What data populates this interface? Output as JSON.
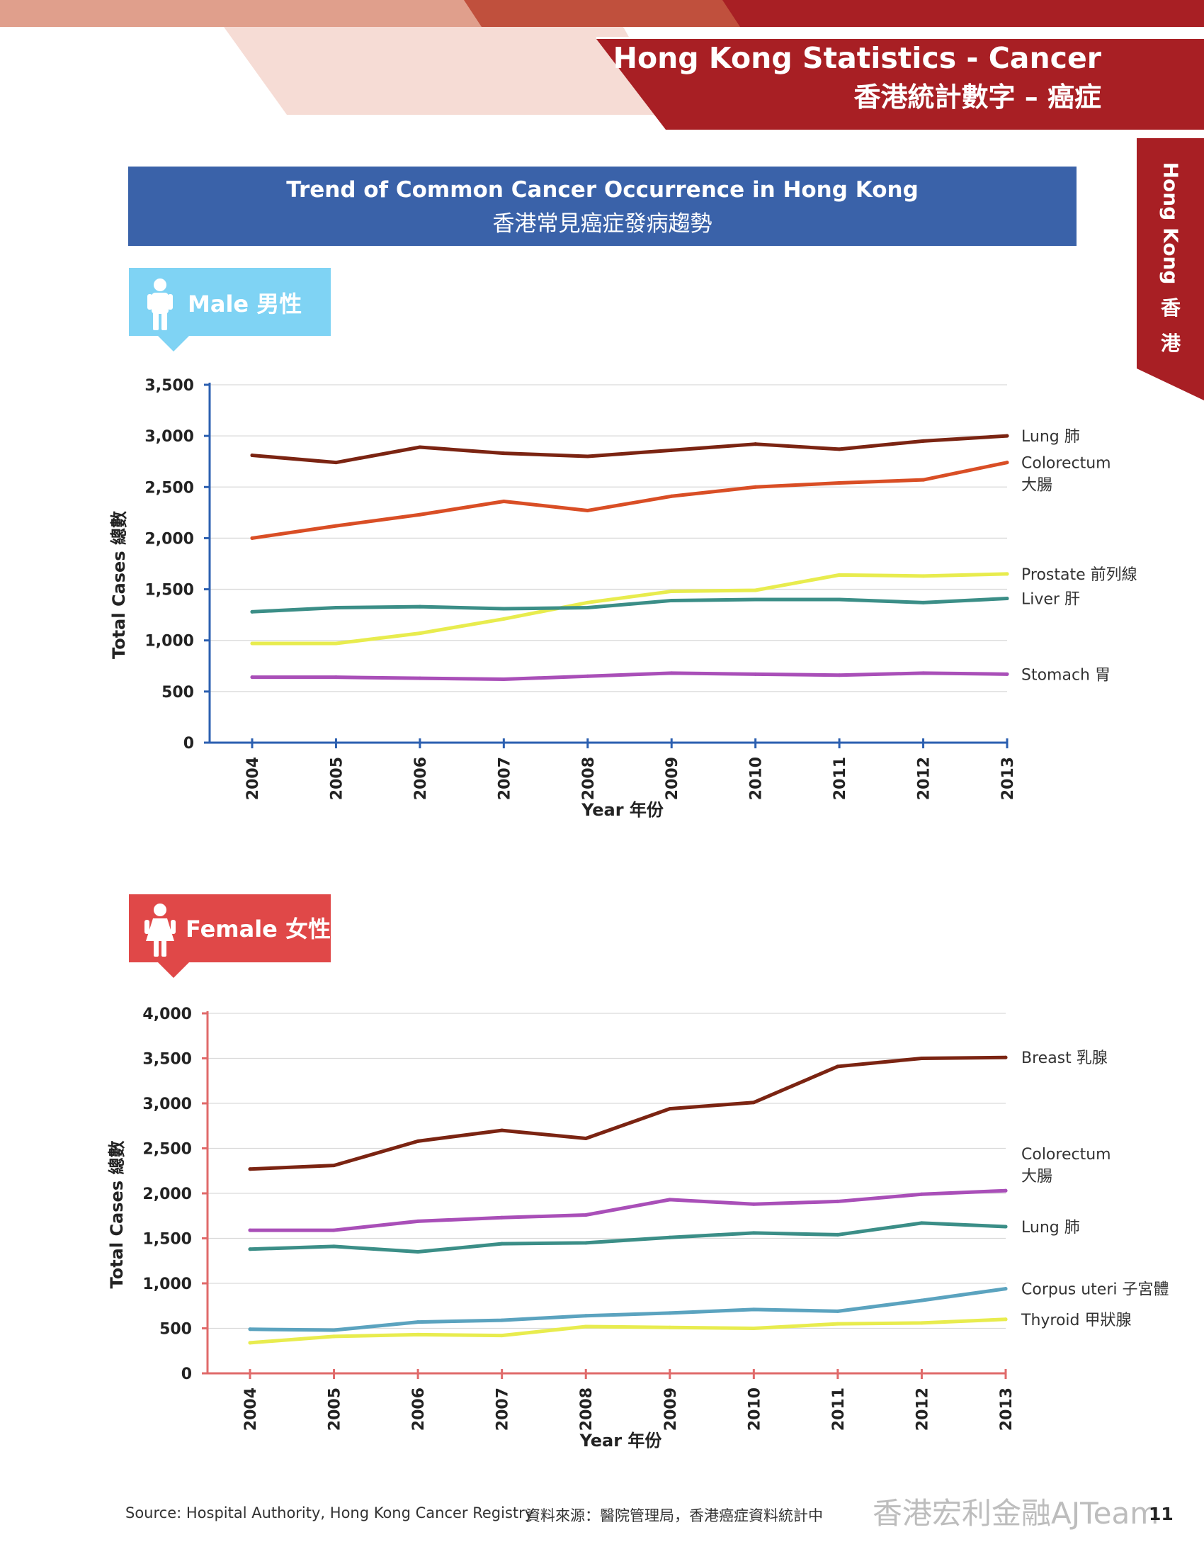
{
  "header": {
    "title_en": "Hong Kong Statistics - Cancer",
    "title_zh": "香港統計數字 – 癌症"
  },
  "side_tab": {
    "line1": "Hong Kong",
    "line2": "香",
    "line3": "港"
  },
  "banner": {
    "title_en": "Trend of Common Cancer Occurrence in Hong Kong",
    "title_zh": "香港常見癌症發病趨勢"
  },
  "male_tag": {
    "label": "Male 男性",
    "color": "#7fd3f4",
    "icon": "male-person-icon"
  },
  "female_tag": {
    "label": "Female 女性",
    "color": "#e04848",
    "icon": "female-person-icon"
  },
  "footer": {
    "source_en": "Source: Hospital Authority, Hong Kong Cancer Registry",
    "source_zh": "資料來源：醫院管理局，香港癌症資料統計中",
    "watermark": "香港宏利金融AJTeam",
    "page_number": "11"
  },
  "chart_data": [
    {
      "type": "line",
      "xlabel": "Year 年份",
      "ylabel": "Total Cases 總數",
      "ylim": [
        0,
        3500
      ],
      "yticks": [
        0,
        500,
        1000,
        1500,
        2000,
        2500,
        3000,
        3500
      ],
      "ytick_labels": [
        "0",
        "500",
        "1,000",
        "1,500",
        "2,000",
        "2,500",
        "3,000",
        "3,500"
      ],
      "axis_color": "#2b5fb0",
      "x": [
        "2004",
        "2005",
        "2006",
        "2007",
        "2008",
        "2009",
        "2010",
        "2011",
        "2012",
        "2013"
      ],
      "series": [
        {
          "name": "Lung 肺",
          "color": "#7b2412",
          "values": [
            2810,
            2740,
            2890,
            2830,
            2800,
            2860,
            2920,
            2870,
            2950,
            3000
          ]
        },
        {
          "name": "Colorectum 大腸",
          "color": "#d94e25",
          "values": [
            2000,
            2120,
            2230,
            2360,
            2270,
            2410,
            2500,
            2540,
            2570,
            2740
          ]
        },
        {
          "name": "Prostate 前列線",
          "color": "#e8ec4e",
          "values": [
            970,
            970,
            1070,
            1210,
            1370,
            1480,
            1490,
            1640,
            1630,
            1650
          ]
        },
        {
          "name": "Liver 肝",
          "color": "#3b8e87",
          "values": [
            1280,
            1320,
            1330,
            1310,
            1320,
            1390,
            1400,
            1400,
            1370,
            1410
          ]
        },
        {
          "name": "Stomach 胃",
          "color": "#a94fb8",
          "values": [
            640,
            640,
            630,
            620,
            650,
            680,
            670,
            660,
            680,
            670
          ]
        }
      ]
    },
    {
      "type": "line",
      "xlabel": "Year 年份",
      "ylabel": "Total Cases 總數",
      "ylim": [
        0,
        4000
      ],
      "yticks": [
        0,
        500,
        1000,
        1500,
        2000,
        2500,
        3000,
        3500,
        4000
      ],
      "ytick_labels": [
        "0",
        "500",
        "1,000",
        "1,500",
        "2,000",
        "2,500",
        "3,000",
        "3,500",
        "4,000"
      ],
      "axis_color": "#e06a6a",
      "x": [
        "2004",
        "2005",
        "2006",
        "2007",
        "2008",
        "2009",
        "2010",
        "2011",
        "2012",
        "2013"
      ],
      "series": [
        {
          "name": "Breast 乳腺",
          "color": "#7b2412",
          "values": [
            2270,
            2310,
            2580,
            2700,
            2610,
            2940,
            3010,
            3410,
            3500,
            3510
          ]
        },
        {
          "name": "Colorectum 大腸",
          "color": "#a94fb8",
          "values": [
            1590,
            1590,
            1690,
            1730,
            1760,
            1930,
            1880,
            1910,
            1990,
            2030
          ]
        },
        {
          "name": "Lung 肺",
          "color": "#3b8e87",
          "values": [
            1380,
            1410,
            1350,
            1440,
            1450,
            1510,
            1560,
            1540,
            1670,
            1630
          ]
        },
        {
          "name": "Corpus uteri 子宮體",
          "color": "#5ba3bf",
          "values": [
            490,
            480,
            570,
            590,
            640,
            670,
            710,
            690,
            810,
            940
          ]
        },
        {
          "name": "Thyroid 甲狀腺",
          "color": "#e8ec4e",
          "values": [
            340,
            410,
            430,
            420,
            520,
            510,
            500,
            550,
            560,
            600
          ]
        }
      ]
    }
  ]
}
